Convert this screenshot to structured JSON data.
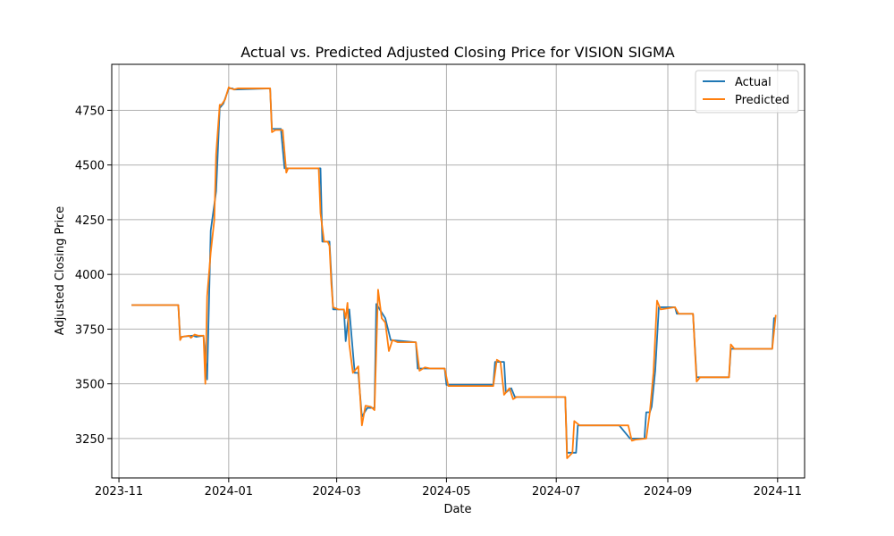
{
  "chart_data": {
    "type": "line",
    "title": "Actual vs. Predicted Adjusted Closing Price for VISION SIGMA",
    "xlabel": "Date",
    "ylabel": "Adjusted Closing Price",
    "xlim": [
      "2023-10-28",
      "2024-11-16"
    ],
    "ylim": [
      3070,
      4960
    ],
    "x_ticks": [
      "2023-11",
      "2024-01",
      "2024-03",
      "2024-05",
      "2024-07",
      "2024-09",
      "2024-11"
    ],
    "x_tick_dates": [
      "2023-11-01",
      "2024-01-01",
      "2024-03-01",
      "2024-05-01",
      "2024-07-01",
      "2024-09-01",
      "2024-11-01"
    ],
    "y_ticks": [
      3250,
      3500,
      3750,
      4000,
      4250,
      4500,
      4750
    ],
    "grid": true,
    "legend_position": "top-right",
    "colors": {
      "actual": "#1f77b4",
      "predicted": "#ff7f0e"
    },
    "series": [
      {
        "name": "Actual",
        "points": [
          [
            "2023-11-08",
            3860
          ],
          [
            "2023-12-04",
            3860
          ],
          [
            "2023-12-05",
            3710
          ],
          [
            "2023-12-06",
            3715
          ],
          [
            "2023-12-12",
            3720
          ],
          [
            "2023-12-14",
            3715
          ],
          [
            "2023-12-18",
            3720
          ],
          [
            "2023-12-20",
            3520
          ],
          [
            "2023-12-22",
            4200
          ],
          [
            "2023-12-25",
            4380
          ],
          [
            "2023-12-27",
            4760
          ],
          [
            "2023-12-29",
            4780
          ],
          [
            "2024-01-01",
            4850
          ],
          [
            "2024-01-03",
            4850
          ],
          [
            "2024-01-04",
            4845
          ],
          [
            "2024-01-24",
            4850
          ],
          [
            "2024-01-25",
            4665
          ],
          [
            "2024-01-30",
            4665
          ],
          [
            "2024-02-01",
            4485
          ],
          [
            "2024-02-20",
            4485
          ],
          [
            "2024-02-21",
            4485
          ],
          [
            "2024-02-22",
            4150
          ],
          [
            "2024-02-26",
            4150
          ],
          [
            "2024-02-28",
            3840
          ],
          [
            "2024-03-05",
            3840
          ],
          [
            "2024-03-06",
            3695
          ],
          [
            "2024-03-08",
            3840
          ],
          [
            "2024-03-11",
            3550
          ],
          [
            "2024-03-13",
            3550
          ],
          [
            "2024-03-15",
            3350
          ],
          [
            "2024-03-18",
            3390
          ],
          [
            "2024-03-22",
            3390
          ],
          [
            "2024-03-23",
            3865
          ],
          [
            "2024-03-28",
            3800
          ],
          [
            "2024-03-31",
            3700
          ],
          [
            "2024-04-14",
            3690
          ],
          [
            "2024-04-15",
            3570
          ],
          [
            "2024-04-20",
            3570
          ],
          [
            "2024-04-30",
            3570
          ],
          [
            "2024-05-01",
            3495
          ],
          [
            "2024-05-15",
            3495
          ],
          [
            "2024-05-27",
            3495
          ],
          [
            "2024-05-28",
            3600
          ],
          [
            "2024-06-02",
            3600
          ],
          [
            "2024-06-03",
            3460
          ],
          [
            "2024-06-06",
            3480
          ],
          [
            "2024-06-08",
            3440
          ],
          [
            "2024-07-01",
            3440
          ],
          [
            "2024-07-06",
            3440
          ],
          [
            "2024-07-07",
            3185
          ],
          [
            "2024-07-12",
            3185
          ],
          [
            "2024-07-13",
            3310
          ],
          [
            "2024-08-05",
            3310
          ],
          [
            "2024-08-11",
            3250
          ],
          [
            "2024-08-19",
            3250
          ],
          [
            "2024-08-20",
            3370
          ],
          [
            "2024-08-22",
            3370
          ],
          [
            "2024-08-23",
            3395
          ],
          [
            "2024-08-25",
            3560
          ],
          [
            "2024-08-27",
            3850
          ],
          [
            "2024-09-05",
            3850
          ],
          [
            "2024-09-06",
            3820
          ],
          [
            "2024-09-15",
            3820
          ],
          [
            "2024-09-17",
            3530
          ],
          [
            "2024-10-05",
            3530
          ],
          [
            "2024-10-06",
            3660
          ],
          [
            "2024-10-29",
            3660
          ],
          [
            "2024-10-30",
            3800
          ],
          [
            "2024-10-31",
            3800
          ]
        ]
      },
      {
        "name": "Predicted",
        "points": [
          [
            "2023-11-08",
            3860
          ],
          [
            "2023-12-04",
            3860
          ],
          [
            "2023-12-05",
            3700
          ],
          [
            "2023-12-06",
            3715
          ],
          [
            "2023-12-10",
            3720
          ],
          [
            "2023-12-11",
            3710
          ],
          [
            "2023-12-13",
            3725
          ],
          [
            "2023-12-15",
            3720
          ],
          [
            "2023-12-18",
            3720
          ],
          [
            "2023-12-19",
            3500
          ],
          [
            "2023-12-20",
            3900
          ],
          [
            "2023-12-22",
            4100
          ],
          [
            "2023-12-24",
            4250
          ],
          [
            "2023-12-25",
            4550
          ],
          [
            "2023-12-27",
            4775
          ],
          [
            "2023-12-28",
            4775
          ],
          [
            "2023-12-30",
            4800
          ],
          [
            "2024-01-01",
            4855
          ],
          [
            "2024-01-02",
            4850
          ],
          [
            "2024-01-04",
            4845
          ],
          [
            "2024-01-06",
            4850
          ],
          [
            "2024-01-24",
            4850
          ],
          [
            "2024-01-25",
            4650
          ],
          [
            "2024-01-27",
            4660
          ],
          [
            "2024-01-31",
            4660
          ],
          [
            "2024-02-02",
            4465
          ],
          [
            "2024-02-03",
            4485
          ],
          [
            "2024-02-20",
            4485
          ],
          [
            "2024-02-21",
            4280
          ],
          [
            "2024-02-23",
            4150
          ],
          [
            "2024-02-25",
            4150
          ],
          [
            "2024-02-26",
            4130
          ],
          [
            "2024-02-27",
            3960
          ],
          [
            "2024-02-28",
            3850
          ],
          [
            "2024-03-02",
            3840
          ],
          [
            "2024-03-05",
            3840
          ],
          [
            "2024-03-06",
            3800
          ],
          [
            "2024-03-07",
            3870
          ],
          [
            "2024-03-08",
            3680
          ],
          [
            "2024-03-10",
            3550
          ],
          [
            "2024-03-13",
            3580
          ],
          [
            "2024-03-15",
            3310
          ],
          [
            "2024-03-17",
            3400
          ],
          [
            "2024-03-20",
            3395
          ],
          [
            "2024-03-22",
            3380
          ],
          [
            "2024-03-24",
            3930
          ],
          [
            "2024-03-26",
            3800
          ],
          [
            "2024-03-28",
            3780
          ],
          [
            "2024-03-30",
            3650
          ],
          [
            "2024-04-01",
            3700
          ],
          [
            "2024-04-04",
            3690
          ],
          [
            "2024-04-14",
            3690
          ],
          [
            "2024-04-16",
            3560
          ],
          [
            "2024-04-19",
            3575
          ],
          [
            "2024-04-22",
            3570
          ],
          [
            "2024-04-30",
            3570
          ],
          [
            "2024-05-02",
            3490
          ],
          [
            "2024-05-04",
            3490
          ],
          [
            "2024-05-27",
            3490
          ],
          [
            "2024-05-29",
            3610
          ],
          [
            "2024-05-31",
            3600
          ],
          [
            "2024-06-02",
            3450
          ],
          [
            "2024-06-05",
            3480
          ],
          [
            "2024-06-07",
            3430
          ],
          [
            "2024-06-09",
            3440
          ],
          [
            "2024-07-06",
            3440
          ],
          [
            "2024-07-07",
            3160
          ],
          [
            "2024-07-10",
            3185
          ],
          [
            "2024-07-11",
            3330
          ],
          [
            "2024-07-14",
            3310
          ],
          [
            "2024-08-10",
            3310
          ],
          [
            "2024-08-12",
            3240
          ],
          [
            "2024-08-14",
            3245
          ],
          [
            "2024-08-20",
            3250
          ],
          [
            "2024-08-22",
            3370
          ],
          [
            "2024-08-24",
            3550
          ],
          [
            "2024-08-26",
            3880
          ],
          [
            "2024-08-28",
            3840
          ],
          [
            "2024-09-05",
            3850
          ],
          [
            "2024-09-07",
            3820
          ],
          [
            "2024-09-15",
            3820
          ],
          [
            "2024-09-17",
            3510
          ],
          [
            "2024-09-19",
            3530
          ],
          [
            "2024-10-05",
            3530
          ],
          [
            "2024-10-06",
            3680
          ],
          [
            "2024-10-08",
            3660
          ],
          [
            "2024-10-29",
            3660
          ],
          [
            "2024-10-31",
            3815
          ]
        ]
      }
    ]
  }
}
